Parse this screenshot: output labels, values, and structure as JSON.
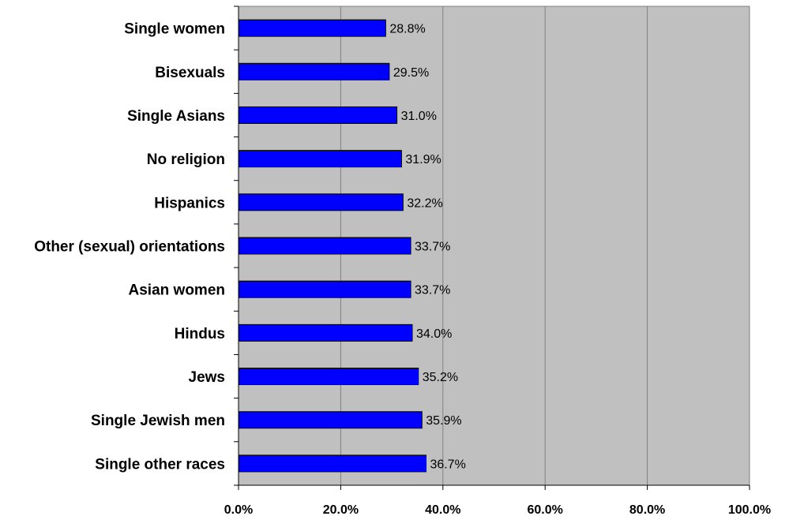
{
  "chart_data": {
    "type": "bar",
    "orientation": "horizontal",
    "categories": [
      "Single women",
      "Bisexuals",
      "Single Asians",
      "No religion",
      "Hispanics",
      "Other (sexual) orientations",
      "Asian women",
      "Hindus",
      "Jews",
      "Single Jewish men",
      "Single other races"
    ],
    "values": [
      28.8,
      29.5,
      31.0,
      31.9,
      32.2,
      33.7,
      33.7,
      34.0,
      35.2,
      35.9,
      36.7
    ],
    "data_labels": [
      "28.8%",
      "29.5%",
      "31.0%",
      "31.9%",
      "32.2%",
      "33.7%",
      "33.7%",
      "34.0%",
      "35.2%",
      "35.9%",
      "36.7%"
    ],
    "x_ticks": [
      "0.0%",
      "20.0%",
      "40.0%",
      "60.0%",
      "80.0%",
      "100.0%"
    ],
    "xlim": [
      0,
      100
    ],
    "title": "",
    "xlabel": "",
    "ylabel": "",
    "grid": true,
    "legend": "none",
    "colors": {
      "bar": "#0000ff",
      "plot_background": "#c0c0c0",
      "gridline": "#808080"
    }
  }
}
